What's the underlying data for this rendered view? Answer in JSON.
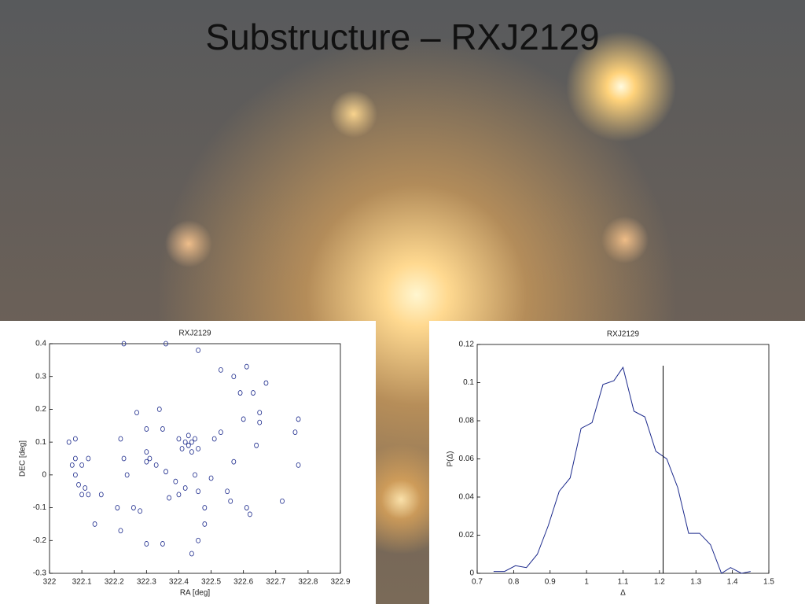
{
  "title": "Substructure – RXJ2129",
  "chart_data": [
    {
      "type": "scatter",
      "title": "RXJ2129",
      "xlabel": "RA [deg]",
      "ylabel": "DEC [deg]",
      "color": "#1c2a8c",
      "xlim": [
        322,
        322.9
      ],
      "ylim": [
        -0.3,
        0.4
      ],
      "xticks": [
        322,
        322.1,
        322.2,
        322.3,
        322.4,
        322.5,
        322.6,
        322.7,
        322.8,
        322.9
      ],
      "yticks": [
        -0.3,
        -0.2,
        -0.1,
        0,
        0.1,
        0.2,
        0.3,
        0.4
      ],
      "x": [
        322.06,
        322.08,
        322.07,
        322.08,
        322.1,
        322.12,
        322.08,
        322.09,
        322.11,
        322.1,
        322.12,
        322.16,
        322.14,
        322.21,
        322.22,
        322.22,
        322.23,
        322.26,
        322.28,
        322.27,
        322.3,
        322.3,
        322.31,
        322.34,
        322.35,
        322.33,
        322.3,
        322.35,
        322.37,
        322.36,
        322.39,
        322.4,
        322.42,
        322.43,
        322.44,
        322.41,
        322.45,
        322.44,
        322.4,
        322.46,
        322.43,
        322.42,
        322.45,
        322.46,
        322.48,
        322.48,
        322.51,
        322.53,
        322.53,
        322.57,
        322.57,
        322.55,
        322.56,
        322.59,
        322.6,
        322.61,
        322.63,
        322.65,
        322.65,
        322.64,
        322.67,
        322.62,
        322.61,
        322.72,
        322.77,
        322.76,
        322.77,
        322.36,
        322.23,
        322.46,
        322.46,
        322.44,
        322.3,
        322.24,
        322.5
      ],
      "y": [
        0.1,
        0.11,
        0.03,
        0.05,
        0.03,
        0.05,
        0.0,
        -0.03,
        -0.04,
        -0.06,
        -0.06,
        -0.06,
        -0.15,
        -0.1,
        0.11,
        -0.17,
        0.05,
        -0.1,
        -0.11,
        0.19,
        0.14,
        0.07,
        0.05,
        0.2,
        0.14,
        0.03,
        -0.21,
        -0.21,
        -0.07,
        0.01,
        -0.02,
        -0.06,
        0.1,
        0.09,
        0.1,
        0.08,
        0.11,
        0.07,
        0.11,
        0.08,
        0.12,
        -0.04,
        0.0,
        -0.05,
        -0.1,
        -0.15,
        0.11,
        0.13,
        0.32,
        0.3,
        0.04,
        -0.05,
        -0.08,
        0.25,
        0.17,
        0.33,
        0.25,
        0.19,
        0.16,
        0.09,
        0.28,
        -0.12,
        -0.1,
        -0.08,
        0.17,
        0.13,
        0.03,
        0.4,
        0.4,
        0.38,
        -0.2,
        -0.24,
        0.04,
        0.0,
        -0.01
      ]
    },
    {
      "type": "line",
      "title": "RXJ2129",
      "xlabel": "Δ",
      "ylabel": "P(Δ)",
      "color": "#1c2a8c",
      "xlim": [
        0.7,
        1.5
      ],
      "ylim": [
        0,
        0.12
      ],
      "xticks": [
        0.7,
        0.8,
        0.9,
        1,
        1.1,
        1.2,
        1.3,
        1.4,
        1.5
      ],
      "yticks": [
        0,
        0.02,
        0.04,
        0.06,
        0.08,
        0.1,
        0.12
      ],
      "x": [
        0.745,
        0.775,
        0.805,
        0.835,
        0.865,
        0.895,
        0.925,
        0.955,
        0.985,
        1.015,
        1.045,
        1.075,
        1.1,
        1.13,
        1.16,
        1.19,
        1.22,
        1.25,
        1.28,
        1.31,
        1.34,
        1.37,
        1.395,
        1.425,
        1.45
      ],
      "values": [
        0.001,
        0.001,
        0.004,
        0.003,
        0.01,
        0.025,
        0.043,
        0.05,
        0.076,
        0.079,
        0.099,
        0.101,
        0.108,
        0.085,
        0.082,
        0.064,
        0.06,
        0.045,
        0.021,
        0.021,
        0.015,
        0.0,
        0.003,
        0.0,
        0.001
      ],
      "marker_x": 1.21
    }
  ]
}
